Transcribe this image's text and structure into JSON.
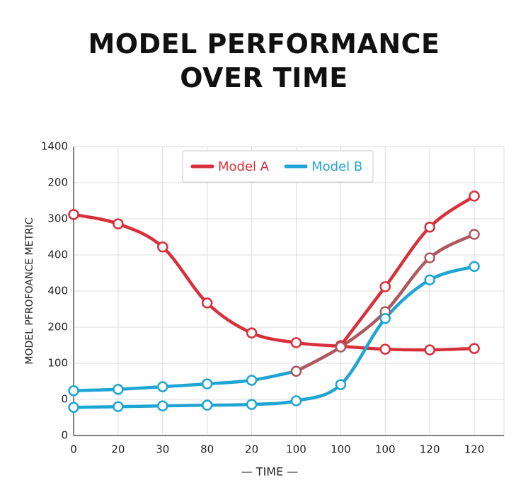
{
  "chart_data": {
    "type": "line",
    "title": "MODEL PERFORMANCE OVER TIME",
    "xlabel": "— TIME —",
    "ylabel": "MODEL PFROFOANCE METRIC",
    "categories": [
      "0",
      "20",
      "30",
      "80",
      "20",
      "100",
      "100",
      "100",
      "120",
      "120"
    ],
    "ylim": [
      0,
      8
    ],
    "yticks": [
      {
        "value": 0,
        "label": "0"
      },
      {
        "value": 1,
        "label": "0"
      },
      {
        "value": 2,
        "label": "100"
      },
      {
        "value": 3,
        "label": "200"
      },
      {
        "value": 4,
        "label": "400"
      },
      {
        "value": 5,
        "label": "400"
      },
      {
        "value": 6,
        "label": "300"
      },
      {
        "value": 7,
        "label": "200"
      },
      {
        "value": 8,
        "label": "1400"
      }
    ],
    "grid": true,
    "legend": "top",
    "series": [
      {
        "name": "Model A",
        "color": "#d8303a",
        "values": [
          6.12,
          5.86,
          5.22,
          3.67,
          2.84,
          2.57,
          2.47,
          2.39,
          2.37,
          2.41
        ]
      },
      {
        "name": "Model A",
        "color": "#d8303a",
        "values": [
          null,
          null,
          null,
          null,
          null,
          null,
          2.49,
          4.12,
          5.77,
          6.63
        ]
      },
      {
        "name": "Model B",
        "color": "#1ea5d3",
        "values": [
          1.24,
          1.28,
          1.35,
          1.43,
          1.53,
          1.78,
          null,
          null,
          null,
          null
        ]
      },
      {
        "name": "Model B",
        "color": "#b0575e",
        "values": [
          null,
          null,
          null,
          null,
          null,
          1.78,
          2.45,
          3.43,
          4.92,
          5.57
        ]
      },
      {
        "name": "Model B",
        "color": "#1ea5d3",
        "values": [
          0.78,
          0.8,
          0.82,
          0.84,
          0.86,
          0.96,
          1.41,
          3.24,
          4.31,
          4.68
        ]
      }
    ]
  }
}
